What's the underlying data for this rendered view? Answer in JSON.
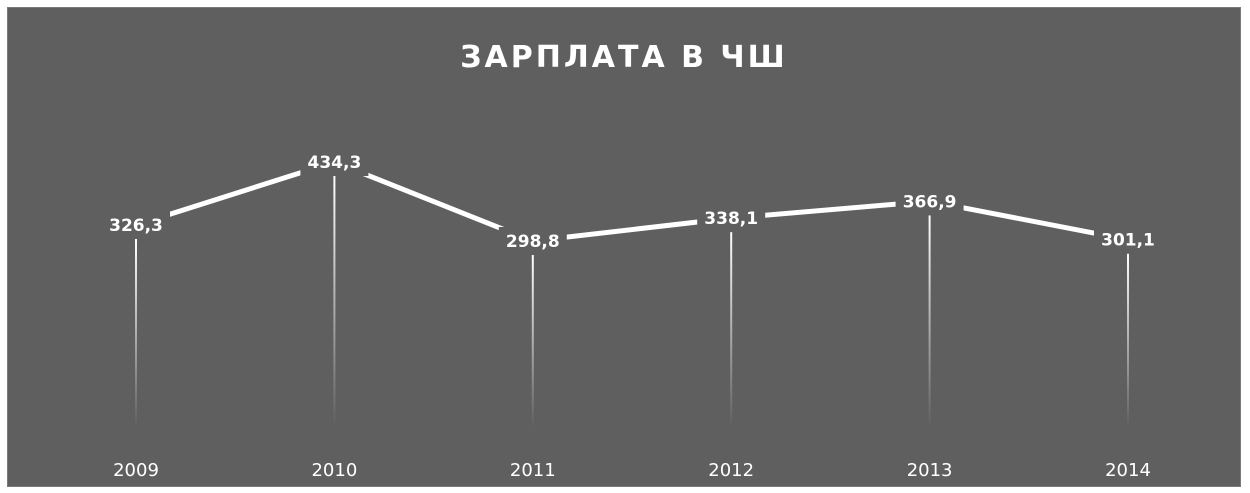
{
  "chart_data": {
    "type": "line",
    "title": "ЗАРПЛАТА В ЧШ",
    "categories": [
      "2009",
      "2010",
      "2011",
      "2012",
      "2013",
      "2014"
    ],
    "values": [
      326.3,
      434.3,
      298.8,
      338.1,
      366.9,
      301.1
    ],
    "value_labels": [
      "326,3",
      "434,3",
      "298,8",
      "338,1",
      "366,9",
      "301,1"
    ],
    "xlabel": "",
    "ylabel": "",
    "legend": "none",
    "grid": false,
    "drop_lines": true,
    "colors": {
      "background": "#5f5f5f",
      "line": "#ffffff",
      "text": "#ffffff"
    }
  }
}
